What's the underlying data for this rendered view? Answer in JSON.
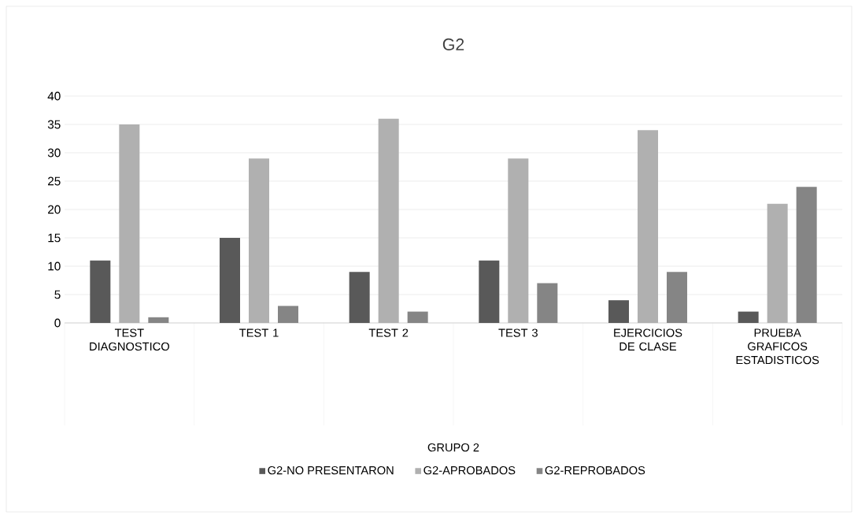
{
  "chart_data": {
    "type": "bar",
    "title": "G2",
    "annotations": [
      "GRUPO 2"
    ],
    "categories": [
      "TEST DIAGNOSTICO",
      "TEST 1",
      "TEST 2",
      "TEST 3",
      "EJERCICIOS DE CLASE",
      "PRUEBA GRAFICOS ESTADISTICOS"
    ],
    "series": [
      {
        "name": "G2-NO PRESENTARON",
        "color": "#595959",
        "values": [
          11,
          15,
          9,
          11,
          4,
          2
        ]
      },
      {
        "name": "G2-APROBADOS",
        "color": "#b0b0b0",
        "values": [
          35,
          29,
          36,
          29,
          34,
          21
        ]
      },
      {
        "name": "G2-REPROBADOS",
        "color": "#858585",
        "values": [
          1,
          3,
          2,
          7,
          9,
          24
        ]
      }
    ],
    "ylim": [
      0,
      40
    ],
    "yticks": [
      0,
      5,
      10,
      15,
      20,
      25,
      30,
      35,
      40
    ],
    "grid": "y",
    "legend": "bottom"
  }
}
